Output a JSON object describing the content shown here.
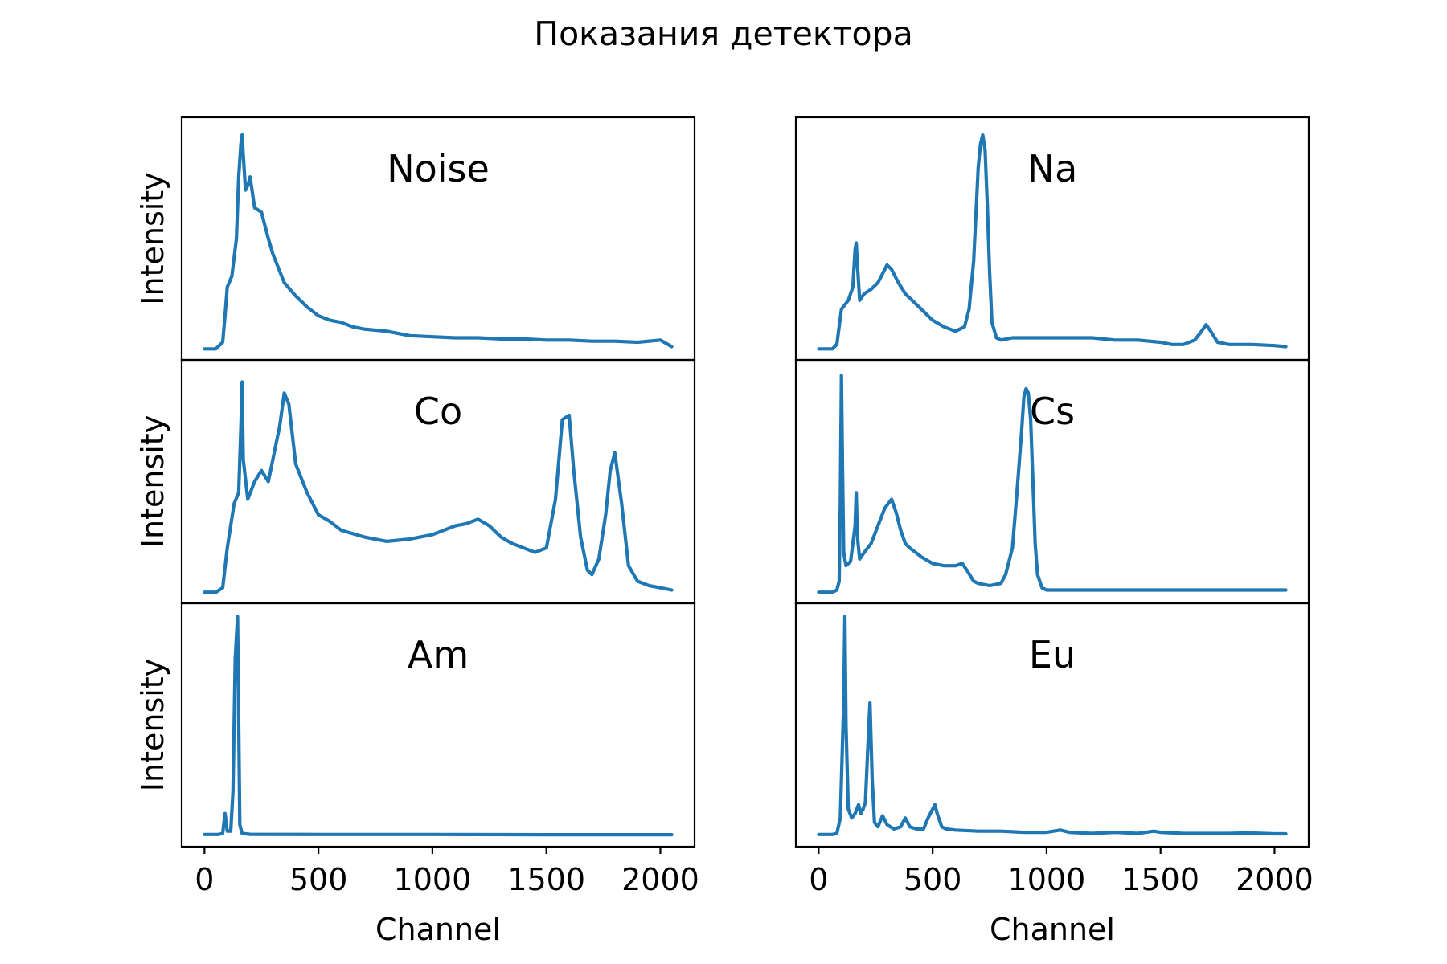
{
  "figure": {
    "title": "Показания детектора",
    "line_color": "#1f77b4"
  },
  "chart_data": [
    {
      "type": "line",
      "panel": "Noise",
      "column": "left",
      "row": 1,
      "ylabel": "Intensity",
      "xlabel": "",
      "annotation": "Noise",
      "y_ticks": "hidden",
      "x": [
        0,
        50,
        80,
        90,
        100,
        120,
        140,
        150,
        160,
        165,
        170,
        180,
        190,
        200,
        220,
        250,
        280,
        300,
        350,
        400,
        450,
        500,
        550,
        600,
        650,
        700,
        800,
        900,
        1000,
        1100,
        1200,
        1300,
        1400,
        1500,
        1600,
        1700,
        1800,
        1900,
        2000,
        2050
      ],
      "y": [
        0,
        0,
        0.03,
        0.15,
        0.28,
        0.33,
        0.5,
        0.78,
        0.93,
        0.97,
        0.88,
        0.72,
        0.74,
        0.78,
        0.64,
        0.62,
        0.5,
        0.43,
        0.3,
        0.24,
        0.19,
        0.15,
        0.13,
        0.12,
        0.1,
        0.09,
        0.08,
        0.06,
        0.055,
        0.05,
        0.05,
        0.045,
        0.045,
        0.04,
        0.04,
        0.035,
        0.035,
        0.03,
        0.04,
        0.01
      ]
    },
    {
      "type": "line",
      "panel": "Co",
      "column": "left",
      "row": 2,
      "ylabel": "Intensity",
      "xlabel": "",
      "annotation": "Co",
      "y_ticks": "hidden",
      "x": [
        0,
        50,
        80,
        100,
        130,
        150,
        160,
        165,
        170,
        190,
        220,
        250,
        280,
        300,
        330,
        350,
        370,
        400,
        450,
        500,
        550,
        600,
        700,
        800,
        900,
        1000,
        1100,
        1150,
        1200,
        1250,
        1300,
        1350,
        1400,
        1450,
        1500,
        1540,
        1570,
        1600,
        1620,
        1650,
        1680,
        1700,
        1730,
        1760,
        1780,
        1800,
        1830,
        1860,
        1900,
        1950,
        2000,
        2050
      ],
      "y": [
        0,
        0,
        0.02,
        0.2,
        0.4,
        0.45,
        0.75,
        0.95,
        0.6,
        0.42,
        0.5,
        0.55,
        0.5,
        0.6,
        0.75,
        0.9,
        0.85,
        0.58,
        0.45,
        0.35,
        0.32,
        0.28,
        0.25,
        0.23,
        0.24,
        0.26,
        0.3,
        0.31,
        0.33,
        0.3,
        0.25,
        0.22,
        0.2,
        0.18,
        0.2,
        0.42,
        0.78,
        0.8,
        0.55,
        0.25,
        0.1,
        0.08,
        0.15,
        0.35,
        0.55,
        0.63,
        0.4,
        0.12,
        0.05,
        0.03,
        0.02,
        0.01
      ]
    },
    {
      "type": "line",
      "panel": "Am",
      "column": "left",
      "row": 3,
      "ylabel": "Intensity",
      "xlabel": "Channel",
      "annotation": "Am",
      "y_ticks": "hidden",
      "x": [
        0,
        60,
        80,
        90,
        100,
        115,
        125,
        135,
        145,
        155,
        165,
        180,
        200,
        500,
        1000,
        1500,
        2000,
        2050
      ],
      "y": [
        0.005,
        0.005,
        0.01,
        0.1,
        0.02,
        0.02,
        0.2,
        0.8,
        0.99,
        0.05,
        0.01,
        0.008,
        0.006,
        0.005,
        0.005,
        0.004,
        0.004,
        0.004
      ]
    },
    {
      "type": "line",
      "panel": "Na",
      "column": "right",
      "row": 1,
      "ylabel": "",
      "xlabel": "",
      "annotation": "Na",
      "y_ticks": "hidden",
      "x": [
        0,
        60,
        80,
        100,
        130,
        150,
        160,
        165,
        170,
        180,
        200,
        230,
        260,
        290,
        300,
        320,
        350,
        380,
        400,
        450,
        500,
        550,
        600,
        640,
        660,
        680,
        700,
        710,
        720,
        730,
        740,
        750,
        760,
        780,
        800,
        850,
        900,
        1000,
        1100,
        1200,
        1300,
        1400,
        1500,
        1550,
        1600,
        1650,
        1680,
        1700,
        1720,
        1750,
        1800,
        1900,
        2000,
        2050
      ],
      "y": [
        0,
        0,
        0.02,
        0.18,
        0.22,
        0.28,
        0.45,
        0.48,
        0.38,
        0.22,
        0.25,
        0.27,
        0.3,
        0.36,
        0.38,
        0.36,
        0.3,
        0.25,
        0.23,
        0.18,
        0.13,
        0.1,
        0.08,
        0.1,
        0.18,
        0.4,
        0.82,
        0.93,
        0.97,
        0.9,
        0.65,
        0.35,
        0.12,
        0.05,
        0.04,
        0.05,
        0.05,
        0.05,
        0.05,
        0.05,
        0.04,
        0.04,
        0.03,
        0.02,
        0.02,
        0.04,
        0.08,
        0.11,
        0.08,
        0.03,
        0.02,
        0.02,
        0.015,
        0.01
      ]
    },
    {
      "type": "line",
      "panel": "Cs",
      "column": "right",
      "row": 2,
      "ylabel": "",
      "xlabel": "",
      "annotation": "Cs",
      "y_ticks": "hidden",
      "x": [
        0,
        60,
        80,
        90,
        95,
        100,
        105,
        110,
        120,
        140,
        160,
        165,
        170,
        180,
        200,
        230,
        260,
        290,
        320,
        340,
        360,
        380,
        400,
        450,
        500,
        550,
        600,
        630,
        650,
        680,
        700,
        750,
        800,
        820,
        850,
        870,
        890,
        900,
        910,
        920,
        930,
        940,
        950,
        960,
        980,
        1000,
        1050,
        1100,
        1200,
        1500,
        1800,
        2000,
        2050
      ],
      "y": [
        0,
        0,
        0.01,
        0.05,
        0.4,
        0.98,
        0.55,
        0.18,
        0.12,
        0.14,
        0.3,
        0.45,
        0.25,
        0.15,
        0.18,
        0.22,
        0.3,
        0.38,
        0.42,
        0.36,
        0.28,
        0.22,
        0.2,
        0.16,
        0.13,
        0.12,
        0.12,
        0.13,
        0.1,
        0.05,
        0.04,
        0.03,
        0.04,
        0.08,
        0.2,
        0.45,
        0.72,
        0.88,
        0.92,
        0.9,
        0.78,
        0.5,
        0.22,
        0.08,
        0.02,
        0.01,
        0.01,
        0.01,
        0.01,
        0.01,
        0.01,
        0.01,
        0.01
      ]
    },
    {
      "type": "line",
      "panel": "Eu",
      "column": "right",
      "row": 3,
      "ylabel": "",
      "xlabel": "Channel",
      "annotation": "Eu",
      "y_ticks": "hidden",
      "x": [
        0,
        60,
        80,
        95,
        110,
        115,
        120,
        130,
        145,
        160,
        175,
        185,
        195,
        205,
        215,
        225,
        235,
        245,
        260,
        280,
        300,
        330,
        360,
        380,
        400,
        430,
        460,
        480,
        500,
        510,
        520,
        540,
        560,
        600,
        700,
        800,
        900,
        1000,
        1060,
        1100,
        1200,
        1300,
        1400,
        1470,
        1500,
        1600,
        1700,
        1800,
        1880,
        1950,
        2000,
        2050
      ],
      "y": [
        0.005,
        0.005,
        0.01,
        0.08,
        0.6,
        0.99,
        0.5,
        0.12,
        0.08,
        0.1,
        0.14,
        0.1,
        0.12,
        0.15,
        0.38,
        0.6,
        0.25,
        0.06,
        0.04,
        0.09,
        0.05,
        0.03,
        0.04,
        0.08,
        0.04,
        0.03,
        0.03,
        0.08,
        0.12,
        0.14,
        0.1,
        0.04,
        0.03,
        0.025,
        0.02,
        0.02,
        0.015,
        0.015,
        0.025,
        0.015,
        0.01,
        0.015,
        0.01,
        0.02,
        0.015,
        0.01,
        0.01,
        0.01,
        0.012,
        0.01,
        0.008,
        0.008
      ]
    }
  ],
  "x_axis": {
    "ticks": [
      0,
      500,
      1000,
      1500,
      2000
    ],
    "tick_labels": [
      "0",
      "500",
      "1000",
      "1500",
      "2000"
    ],
    "range": [
      -100,
      2150
    ]
  },
  "y_axis": {
    "range": [
      -0.05,
      1.05
    ]
  }
}
